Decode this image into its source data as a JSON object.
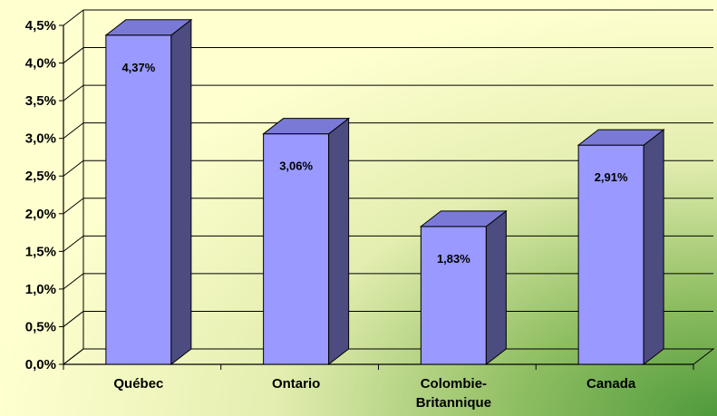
{
  "chart_data": {
    "type": "bar",
    "categories": [
      "Québec",
      "Ontario",
      "Colombie-Britannique",
      "Canada"
    ],
    "category_lines": [
      [
        "Québec"
      ],
      [
        "Ontario"
      ],
      [
        "Colombie-",
        "Britannique"
      ],
      [
        "Canada"
      ]
    ],
    "values": [
      4.37,
      3.06,
      1.83,
      2.91
    ],
    "data_labels": [
      "4,37%",
      "3,06%",
      "1,83%",
      "2,91%"
    ],
    "ylim": [
      0,
      4.5
    ],
    "ytick_values": [
      0,
      0.5,
      1,
      1.5,
      2,
      2.5,
      3,
      3.5,
      4,
      4.5
    ],
    "ytick_labels": [
      "0,0%",
      "0,5%",
      "1,0%",
      "1,5%",
      "2,0%",
      "2,5%",
      "3,0%",
      "3,5%",
      "4,0%",
      "4,5%"
    ],
    "grid": true,
    "three_d": true,
    "colors": {
      "bar_front": "#9999ff",
      "bar_side": "#4c4c80",
      "bar_top": "#7a7ad6",
      "background": "#ffffd0",
      "gradient_end": "#4f9a3c",
      "grid": "#000000"
    }
  }
}
